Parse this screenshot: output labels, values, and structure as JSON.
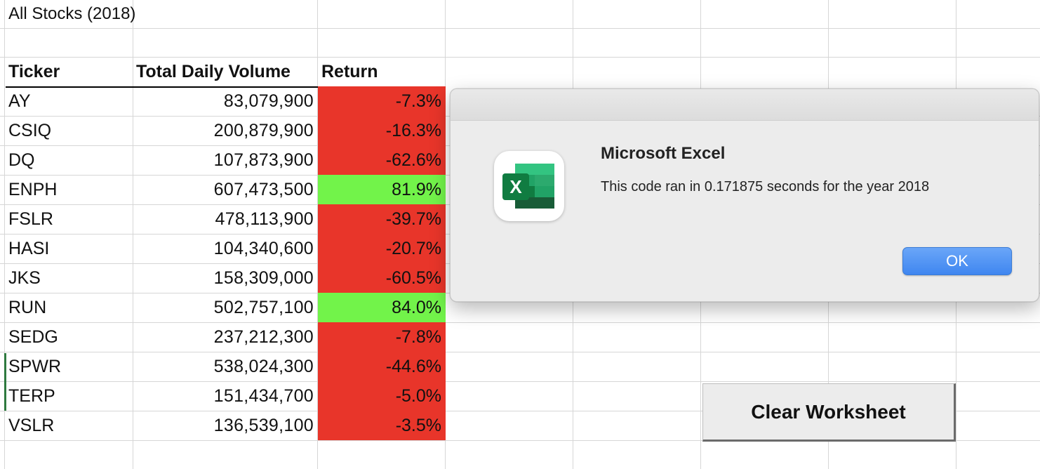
{
  "sheet": {
    "title": "All Stocks (2018)",
    "headers": {
      "ticker": "Ticker",
      "volume": "Total Daily Volume",
      "return": "Return"
    },
    "rows": [
      {
        "ticker": "AY",
        "volume": "83,079,900",
        "return": "-7.3%",
        "status": "negative"
      },
      {
        "ticker": "CSIQ",
        "volume": "200,879,900",
        "return": "-16.3%",
        "status": "negative"
      },
      {
        "ticker": "DQ",
        "volume": "107,873,900",
        "return": "-62.6%",
        "status": "negative"
      },
      {
        "ticker": "ENPH",
        "volume": "607,473,500",
        "return": "81.9%",
        "status": "positive"
      },
      {
        "ticker": "FSLR",
        "volume": "478,113,900",
        "return": "-39.7%",
        "status": "negative"
      },
      {
        "ticker": "HASI",
        "volume": "104,340,600",
        "return": "-20.7%",
        "status": "negative"
      },
      {
        "ticker": "JKS",
        "volume": "158,309,000",
        "return": "-60.5%",
        "status": "negative"
      },
      {
        "ticker": "RUN",
        "volume": "502,757,100",
        "return": "84.0%",
        "status": "positive"
      },
      {
        "ticker": "SEDG",
        "volume": "237,212,300",
        "return": "-7.8%",
        "status": "negative"
      },
      {
        "ticker": "SPWR",
        "volume": "538,024,300",
        "return": "-44.6%",
        "status": "negative"
      },
      {
        "ticker": "TERP",
        "volume": "151,434,700",
        "return": "-5.0%",
        "status": "negative"
      },
      {
        "ticker": "VSLR",
        "volume": "136,539,100",
        "return": "-3.5%",
        "status": "negative"
      }
    ],
    "colors": {
      "negative": "#e8352a",
      "positive": "#72f34a"
    }
  },
  "dialog": {
    "title": "Microsoft Excel",
    "message": "This code ran in 0.171875 seconds for the year 2018",
    "ok_label": "OK",
    "icon": "excel-app-icon",
    "icon_letter": "X"
  },
  "clear_button": {
    "label": "Clear Worksheet"
  }
}
